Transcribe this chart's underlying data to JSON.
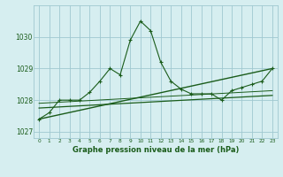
{
  "title": "Graphe pression niveau de la mer (hPa)",
  "background_color": "#d6eef0",
  "grid_color": "#a0c8d0",
  "line_color": "#1a5c1a",
  "x_ticks": [
    0,
    1,
    2,
    3,
    4,
    5,
    6,
    7,
    8,
    9,
    10,
    11,
    12,
    13,
    14,
    15,
    16,
    17,
    18,
    19,
    20,
    21,
    22,
    23
  ],
  "ylim": [
    1026.8,
    1031.0
  ],
  "yticks": [
    1027,
    1028,
    1029,
    1030
  ],
  "series1_x": [
    0,
    1,
    2,
    3,
    4,
    5,
    6,
    7,
    8,
    9,
    10,
    11,
    12,
    13,
    14,
    15,
    16,
    17,
    18,
    19,
    20,
    21,
    22,
    23
  ],
  "series1_y": [
    1027.4,
    1027.6,
    1028.0,
    1028.0,
    1028.0,
    1028.25,
    1028.6,
    1029.0,
    1028.8,
    1029.9,
    1030.5,
    1030.2,
    1029.2,
    1028.6,
    1028.35,
    1028.2,
    1028.2,
    1028.2,
    1028.0,
    1028.3,
    1028.4,
    1028.5,
    1028.6,
    1029.0
  ],
  "series2_x": [
    0,
    23
  ],
  "series2_y": [
    1027.4,
    1029.0
  ],
  "series3_x": [
    0,
    23
  ],
  "series3_y": [
    1027.75,
    1028.15
  ],
  "series4_x": [
    0,
    23
  ],
  "series4_y": [
    1027.9,
    1028.3
  ]
}
